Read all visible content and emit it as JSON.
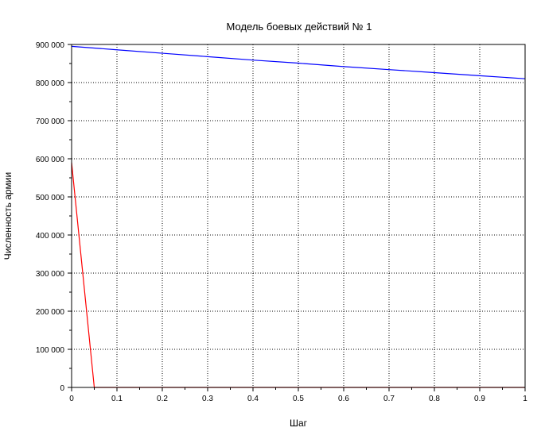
{
  "chart_data": {
    "type": "line",
    "title": "Модель боевых действий № 1",
    "xlabel": "Шаг",
    "ylabel": "Численность армии",
    "xlim": [
      0,
      1
    ],
    "ylim": [
      0,
      900000
    ],
    "grid": true,
    "x_ticks": [
      0,
      0.1,
      0.2,
      0.3,
      0.4,
      0.5,
      0.6,
      0.7,
      0.8,
      0.9,
      1
    ],
    "x_tick_labels": [
      "0",
      "0.1",
      "0.2",
      "0.3",
      "0.4",
      "0.5",
      "0.6",
      "0.7",
      "0.8",
      "0.9",
      "1"
    ],
    "y_ticks": [
      0,
      100000,
      200000,
      300000,
      400000,
      500000,
      600000,
      700000,
      800000,
      900000
    ],
    "y_tick_labels": [
      "0",
      "100 000",
      "200 000",
      "300 000",
      "400 000",
      "500 000",
      "600 000",
      "700 000",
      "800 000",
      "900 000"
    ],
    "series": [
      {
        "color": "#0000ff",
        "x": [
          0,
          0.1,
          0.2,
          0.3,
          0.4,
          0.5,
          0.6,
          0.7,
          0.8,
          0.9,
          1
        ],
        "y": [
          895000,
          886000,
          877000,
          868000,
          859000,
          851000,
          842000,
          834000,
          826000,
          818000,
          810000
        ]
      },
      {
        "color": "#ff0000",
        "x": [
          0,
          0.05,
          0.1,
          0.2,
          0.3,
          0.4,
          0.5,
          0.6,
          0.7,
          0.8,
          0.9,
          1
        ],
        "y": [
          590000,
          0,
          0,
          0,
          0,
          0,
          0,
          0,
          0,
          0,
          0,
          0
        ]
      }
    ]
  }
}
